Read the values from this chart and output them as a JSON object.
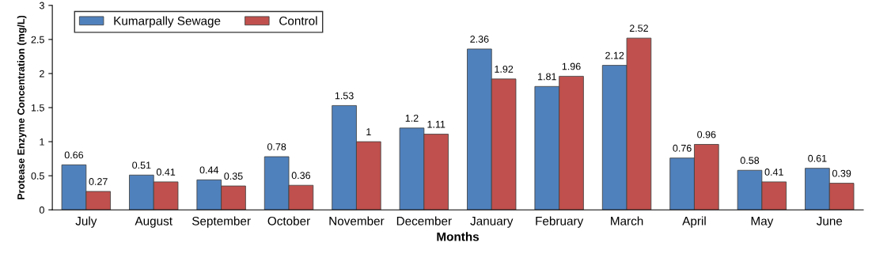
{
  "chart_data": {
    "type": "bar",
    "xlabel": "Months",
    "ylabel": "Protease Enzyme Concentration (mg/L)",
    "categories": [
      "July",
      "August",
      "September",
      "October",
      "November",
      "December",
      "January",
      "February",
      "March",
      "April",
      "May",
      "June"
    ],
    "series": [
      {
        "name": "Kumarpally Sewage",
        "color": "#4f81bd",
        "values": [
          0.66,
          0.51,
          0.44,
          0.78,
          1.53,
          1.2,
          2.36,
          1.81,
          2.12,
          0.76,
          0.58,
          0.61
        ]
      },
      {
        "name": "Control",
        "color": "#c0504d",
        "values": [
          0.27,
          0.41,
          0.35,
          0.36,
          1,
          1.11,
          1.92,
          1.96,
          2.52,
          0.96,
          0.41,
          0.39
        ]
      }
    ],
    "ylim": [
      0,
      3
    ],
    "yticks": [
      0,
      0.5,
      1,
      1.5,
      2,
      2.5,
      3
    ],
    "grid": false,
    "legend": "top left",
    "data_labels": true
  }
}
